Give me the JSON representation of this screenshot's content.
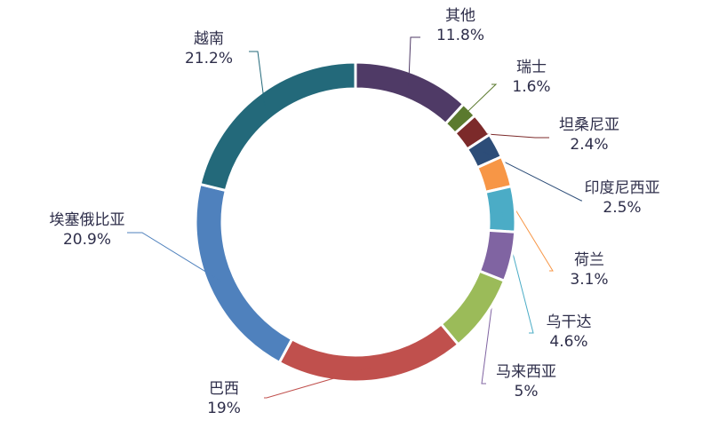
{
  "chart_data": {
    "type": "pie",
    "donut": true,
    "title": "",
    "legend": "none",
    "slices": [
      {
        "label": "其他",
        "value": 11.8,
        "value_label": "11.8%",
        "color": "#4f3a66"
      },
      {
        "label": "瑞士",
        "value": 1.6,
        "value_label": "1.6%",
        "color": "#5b7a2e"
      },
      {
        "label": "坦桑尼亚",
        "value": 2.4,
        "value_label": "2.4%",
        "color": "#7c2a2a"
      },
      {
        "label": "印度尼西亚",
        "value": 2.5,
        "value_label": "2.5%",
        "color": "#2d4d78"
      },
      {
        "label": "荷兰",
        "value": 3.1,
        "value_label": "3.1%",
        "color": "#f79646"
      },
      {
        "label": "乌干达",
        "value": 4.6,
        "value_label": "4.6%",
        "color": "#4bacc6"
      },
      {
        "label": "马来西亚",
        "value": 5,
        "value_label": "5%",
        "color": "#8064a2"
      },
      {
        "label": "",
        "value": 7.9,
        "value_label": "",
        "color": "#9bbb59"
      },
      {
        "label": "巴西",
        "value": 19,
        "value_label": "19%",
        "color": "#c0504d"
      },
      {
        "label": "埃塞俄比亚",
        "value": 20.9,
        "value_label": "20.9%",
        "color": "#4f81bd"
      },
      {
        "label": "越南",
        "value": 21.2,
        "value_label": "21.2%",
        "color": "#23697a"
      }
    ]
  }
}
